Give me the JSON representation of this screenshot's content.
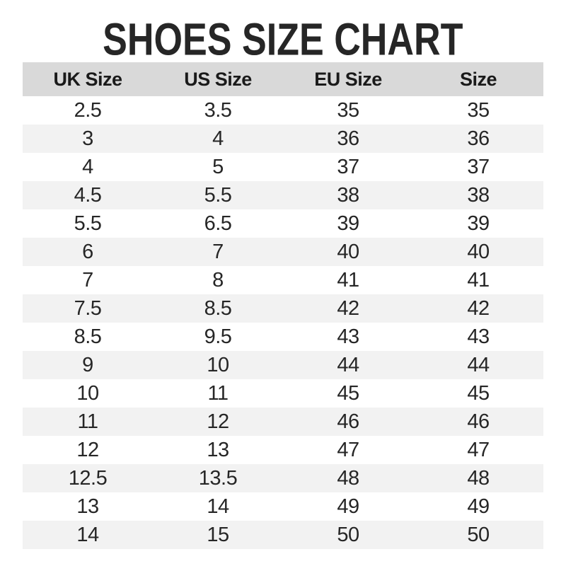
{
  "title": "SHOES SIZE CHART",
  "colors": {
    "header-bg": "#d9d9d9",
    "row-alt-bg": "#f2f2f2",
    "text": "#1f1f1f",
    "background": "#ffffff"
  },
  "chart_data": {
    "type": "table",
    "title": "SHOES SIZE CHART",
    "columns": [
      "UK Size",
      "US Size",
      "EU Size",
      "Size"
    ],
    "rows": [
      [
        "2.5",
        "3.5",
        "35",
        "35"
      ],
      [
        "3",
        "4",
        "36",
        "36"
      ],
      [
        "4",
        "5",
        "37",
        "37"
      ],
      [
        "4.5",
        "5.5",
        "38",
        "38"
      ],
      [
        "5.5",
        "6.5",
        "39",
        "39"
      ],
      [
        "6",
        "7",
        "40",
        "40"
      ],
      [
        "7",
        "8",
        "41",
        "41"
      ],
      [
        "7.5",
        "8.5",
        "42",
        "42"
      ],
      [
        "8.5",
        "9.5",
        "43",
        "43"
      ],
      [
        "9",
        "10",
        "44",
        "44"
      ],
      [
        "10",
        "11",
        "45",
        "45"
      ],
      [
        "11",
        "12",
        "46",
        "46"
      ],
      [
        "12",
        "13",
        "47",
        "47"
      ],
      [
        "12.5",
        "13.5",
        "48",
        "48"
      ],
      [
        "13",
        "14",
        "49",
        "49"
      ],
      [
        "14",
        "15",
        "50",
        "50"
      ]
    ],
    "layout": {
      "header_background": "#d9d9d9",
      "alternating_row_background": "#f2f2f2",
      "grid": false
    }
  }
}
